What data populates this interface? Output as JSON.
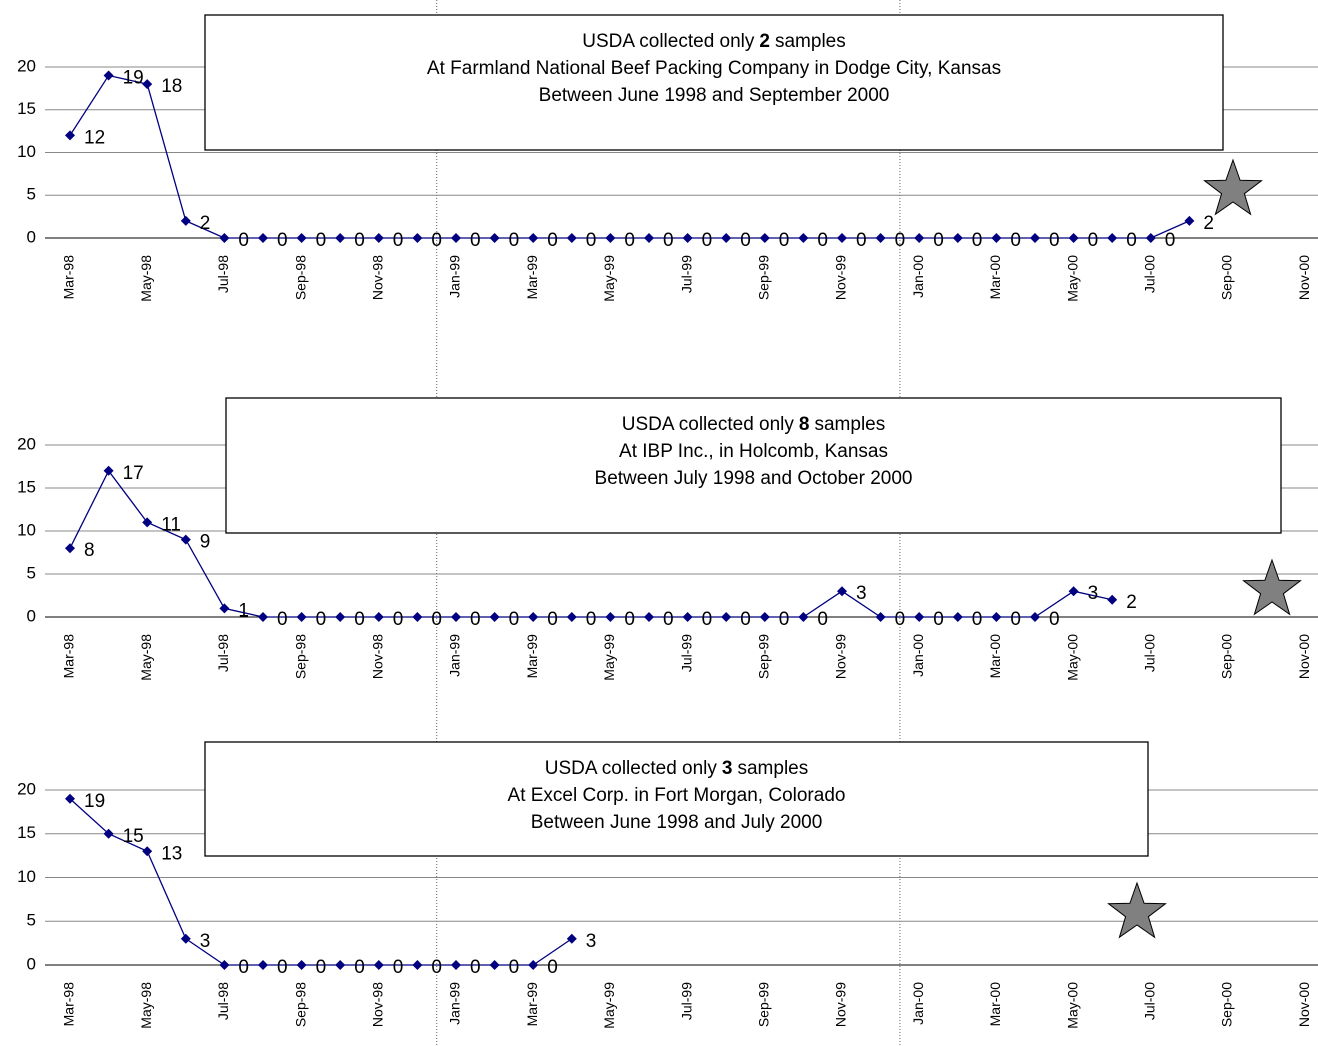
{
  "chart_data": [
    {
      "type": "line",
      "annotation": {
        "before": "USDA collected only",
        "number": 2,
        "after": "samples",
        "lines": [
          "At Farmland National Beef Packing Company in Dodge City, Kansas",
          "Between June 1998 and September 2000"
        ]
      },
      "categories": [
        "Mar-98",
        null,
        "May-98",
        null,
        "Jul-98",
        null,
        "Sep-98",
        null,
        "Nov-98",
        null,
        "Jan-99",
        null,
        "Mar-99",
        null,
        "May-99",
        null,
        "Jul-99",
        null,
        "Sep-99",
        null,
        "Nov-99",
        null,
        "Jan-00",
        null,
        "Mar-00",
        null,
        "May-00",
        null,
        "Jul-00",
        null,
        "Sep-00",
        null,
        "Nov-00"
      ],
      "series": [
        {
          "color": "#000080",
          "values": [
            12,
            19,
            18,
            2,
            0,
            0,
            0,
            0,
            0,
            0,
            0,
            0,
            0,
            0,
            0,
            0,
            0,
            0,
            0,
            0,
            0,
            0,
            0,
            0,
            0,
            0,
            0,
            0,
            0,
            2,
            null,
            null,
            null
          ]
        }
      ],
      "ylim": [
        0,
        20
      ],
      "yticks": [
        0,
        5,
        10,
        15,
        20
      ],
      "grid": true
    },
    {
      "type": "line",
      "annotation": {
        "before": "USDA collected only",
        "number": 8,
        "after": "samples",
        "lines": [
          "At IBP Inc., in Holcomb, Kansas",
          "Between July 1998 and October 2000"
        ]
      },
      "categories": [
        "Mar-98",
        null,
        "May-98",
        null,
        "Jul-98",
        null,
        "Sep-98",
        null,
        "Nov-98",
        null,
        "Jan-99",
        null,
        "Mar-99",
        null,
        "May-99",
        null,
        "Jul-99",
        null,
        "Sep-99",
        null,
        "Nov-99",
        null,
        "Jan-00",
        null,
        "Mar-00",
        null,
        "May-00",
        null,
        "Jul-00",
        null,
        "Sep-00",
        null,
        "Nov-00"
      ],
      "series": [
        {
          "color": "#000080",
          "values": [
            8,
            17,
            11,
            9,
            1,
            0,
            0,
            0,
            0,
            0,
            0,
            0,
            0,
            0,
            0,
            0,
            0,
            0,
            0,
            0,
            3,
            0,
            0,
            0,
            0,
            0,
            3,
            2,
            null,
            null,
            null,
            null,
            null
          ]
        }
      ],
      "ylim": [
        0,
        20
      ],
      "yticks": [
        0,
        5,
        10,
        15,
        20
      ],
      "grid": true
    },
    {
      "type": "line",
      "annotation": {
        "before": "USDA collected only",
        "number": 3,
        "after": "samples",
        "lines": [
          "At Excel Corp. in Fort Morgan, Colorado",
          "Between June 1998 and July 2000"
        ]
      },
      "categories": [
        "Mar-98",
        null,
        "May-98",
        null,
        "Jul-98",
        null,
        "Sep-98",
        null,
        "Nov-98",
        null,
        "Jan-99",
        null,
        "Mar-99",
        null,
        "May-99",
        null,
        "Jul-99",
        null,
        "Sep-99",
        null,
        "Nov-99",
        null,
        "Jan-00",
        null,
        "Mar-00",
        null,
        "May-00",
        null,
        "Jul-00",
        null,
        "Sep-00",
        null,
        "Nov-00"
      ],
      "series": [
        {
          "color": "#000080",
          "values": [
            19,
            15,
            13,
            3,
            0,
            0,
            0,
            0,
            0,
            0,
            0,
            0,
            0,
            3,
            null,
            null,
            null,
            null,
            null,
            null,
            null,
            null,
            null,
            null,
            null,
            null,
            null,
            null,
            null,
            null,
            null,
            null,
            null
          ]
        }
      ],
      "ylim": [
        0,
        20
      ],
      "yticks": [
        0,
        5,
        10,
        15,
        20
      ],
      "grid": true
    }
  ]
}
